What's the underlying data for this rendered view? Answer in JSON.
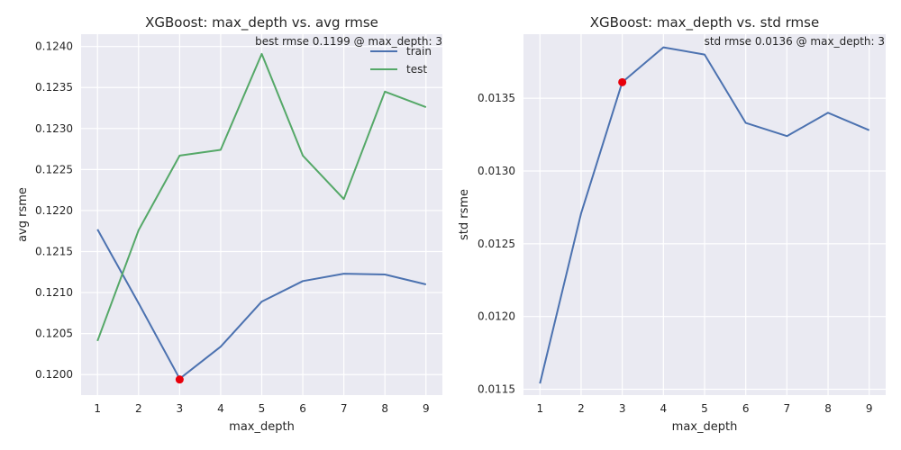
{
  "colors": {
    "plot_bg": "#eaeaf2",
    "train": "#4c72b0",
    "test": "#55a868",
    "best_marker": "#e8000b"
  },
  "chart_data": [
    {
      "type": "line",
      "title": "XGBoost: max_depth vs. avg rmse",
      "xlabel": "max_depth",
      "ylabel": "avg rsme",
      "x": [
        1,
        2,
        3,
        4,
        5,
        6,
        7,
        8,
        9
      ],
      "x_ticks": [
        "1",
        "2",
        "3",
        "4",
        "5",
        "6",
        "7",
        "8",
        "9"
      ],
      "xlim": [
        0.6,
        9.4
      ],
      "ylim": [
        0.11975,
        0.12415
      ],
      "y_ticks": [
        "0.1200",
        "0.1205",
        "0.1210",
        "0.1215",
        "0.1220",
        "0.1225",
        "0.1230",
        "0.1235",
        "0.1240"
      ],
      "y_tick_values": [
        0.12,
        0.1205,
        0.121,
        0.1215,
        0.122,
        0.1225,
        0.123,
        0.1235,
        0.124
      ],
      "series": [
        {
          "name": "train",
          "color": "#4c72b0",
          "values": [
            0.12177,
            0.12087,
            0.11995,
            0.12034,
            0.12089,
            0.12114,
            0.12123,
            0.12122,
            0.1211
          ]
        },
        {
          "name": "test",
          "color": "#55a868",
          "values": [
            0.12041,
            0.12176,
            0.12267,
            0.12274,
            0.12391,
            0.12267,
            0.12214,
            0.12345,
            0.12326
          ]
        }
      ],
      "highlight": {
        "x": 3,
        "y": 0.11994
      },
      "annotation": "best rmse 0.1199 @ max_depth: 3",
      "grid": true,
      "legend": "top-right"
    },
    {
      "type": "line",
      "title": "XGBoost: max_depth vs. std rmse",
      "xlabel": "max_depth",
      "ylabel": "std rsme",
      "x": [
        1,
        2,
        3,
        4,
        5,
        6,
        7,
        8,
        9
      ],
      "x_ticks": [
        "1",
        "2",
        "3",
        "4",
        "5",
        "6",
        "7",
        "8",
        "9"
      ],
      "xlim": [
        0.6,
        9.4
      ],
      "ylim": [
        0.01146,
        0.01394
      ],
      "y_ticks": [
        "0.0115",
        "0.0120",
        "0.0125",
        "0.0130",
        "0.0135"
      ],
      "y_tick_values": [
        0.0115,
        0.012,
        0.0125,
        0.013,
        0.0135
      ],
      "series": [
        {
          "color": "#4c72b0",
          "values": [
            0.01154,
            0.01271,
            0.01361,
            0.01385,
            0.0138,
            0.01333,
            0.01324,
            0.0134,
            0.01328
          ]
        }
      ],
      "highlight": {
        "x": 3,
        "y": 0.01361
      },
      "annotation": "std rmse 0.0136 @ max_depth: 3",
      "grid": true
    }
  ]
}
